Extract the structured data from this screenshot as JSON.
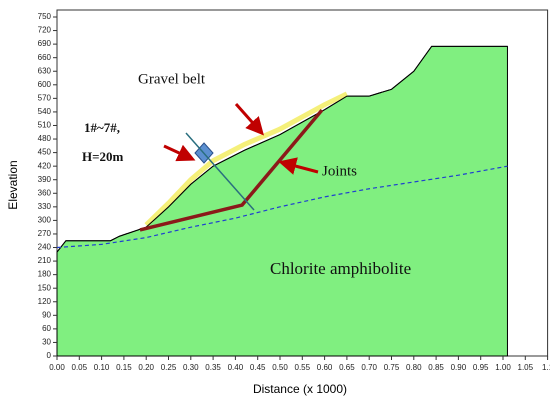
{
  "chart_data": {
    "type": "profile",
    "xlabel": "Distance (x 1000)",
    "ylabel": "Elevation",
    "xlim": [
      0,
      1.1
    ],
    "ylim": [
      0,
      750
    ],
    "xticks": [
      {
        "value": 0,
        "label": "0.00"
      },
      0.05,
      {
        "value": 0.1,
        "label": "0.10"
      },
      0.15,
      {
        "value": 0.2,
        "label": "0.20"
      },
      0.25,
      {
        "value": 0.3,
        "label": "0.30"
      },
      0.35,
      {
        "value": 0.4,
        "label": "0.40"
      },
      0.45,
      {
        "value": 0.5,
        "label": "0.50"
      },
      0.55,
      {
        "value": 0.6,
        "label": "0.60"
      },
      0.65,
      {
        "value": 0.7,
        "label": "0.70"
      },
      0.75,
      {
        "value": 0.8,
        "label": "0.80"
      },
      0.85,
      {
        "value": 0.9,
        "label": "0.90"
      },
      0.95,
      {
        "value": 1,
        "label": "1.00"
      },
      1.05,
      1.1
    ],
    "yticks": [
      0,
      30,
      60,
      90,
      120,
      150,
      180,
      210,
      240,
      270,
      300,
      330,
      360,
      390,
      420,
      450,
      480,
      510,
      540,
      570,
      600,
      630,
      660,
      690,
      720,
      750
    ],
    "surface": {
      "color": "#80ef80",
      "x": [
        0,
        0.02,
        0.12,
        0.14,
        0.2,
        0.25,
        0.3,
        0.35,
        0.42,
        0.5,
        0.6,
        0.65,
        0.7,
        0.75,
        0.8,
        0.84,
        1.01
      ],
      "y": [
        230,
        255,
        255,
        265,
        285,
        330,
        380,
        420,
        455,
        490,
        545,
        575,
        575,
        590,
        630,
        685,
        685
      ]
    },
    "gravel": {
      "color": "#f5f07a",
      "x": [
        0.2,
        0.25,
        0.3,
        0.35,
        0.42,
        0.5,
        0.6,
        0.65
      ],
      "y": [
        290,
        338,
        390,
        432,
        468,
        502,
        556,
        580
      ]
    },
    "water": {
      "color": "#1f3fd0",
      "x": [
        0,
        0.1,
        0.2,
        0.3,
        0.4,
        0.5,
        0.6,
        0.7,
        0.8,
        0.9,
        1.01
      ],
      "y": [
        240,
        247,
        262,
        285,
        305,
        330,
        352,
        370,
        385,
        400,
        420
      ]
    },
    "joints": {
      "color": "#8b1a1a",
      "x": [
        0.186,
        0.415,
        0.594
      ],
      "y": [
        279,
        334,
        544
      ]
    },
    "annotations": {
      "gravel_belt": "Gravel belt",
      "section": "1#~7#,",
      "height": "H=20m",
      "joints": "Joints",
      "rock": "Chlorite amphibolite"
    }
  }
}
